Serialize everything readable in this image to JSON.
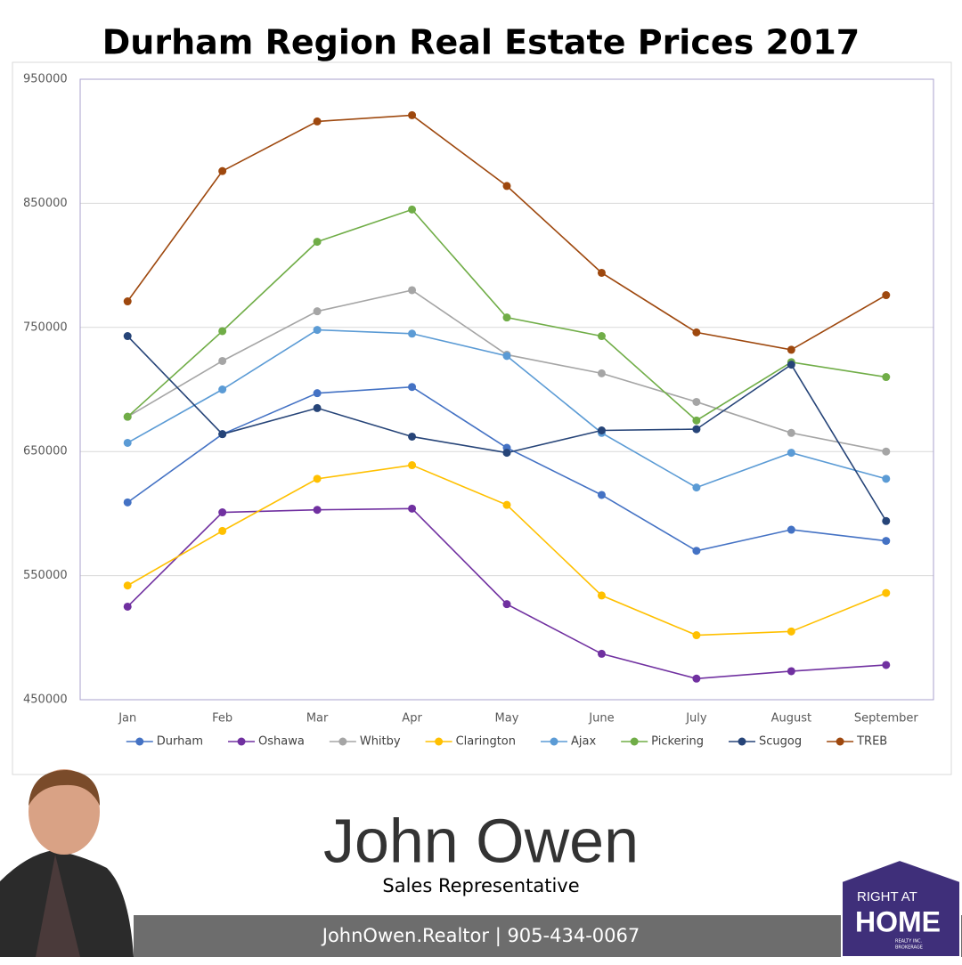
{
  "chart_data": {
    "type": "line",
    "title": "Durham Region Real Estate Prices 2017",
    "categories": [
      "Jan",
      "Feb",
      "Mar",
      "Apr",
      "May",
      "June",
      "July",
      "August",
      "September"
    ],
    "ylim": [
      450000,
      950000
    ],
    "yticks": [
      450000,
      550000,
      650000,
      750000,
      850000,
      950000
    ],
    "grid": true,
    "series": [
      {
        "name": "Durham",
        "color": "#4472c4",
        "values": [
          609000,
          664000,
          697000,
          702000,
          653000,
          615000,
          570000,
          587000,
          578000
        ]
      },
      {
        "name": "Oshawa",
        "color": "#7030a0",
        "values": [
          525000,
          601000,
          603000,
          604000,
          527000,
          487000,
          467000,
          473000,
          478000
        ]
      },
      {
        "name": "Whitby",
        "color": "#a5a5a5",
        "values": [
          678000,
          723000,
          763000,
          780000,
          728000,
          713000,
          690000,
          665000,
          650000
        ]
      },
      {
        "name": "Clarington",
        "color": "#ffc000",
        "values": [
          542000,
          586000,
          628000,
          639000,
          607000,
          534000,
          502000,
          505000,
          536000
        ]
      },
      {
        "name": "Ajax",
        "color": "#5b9bd5",
        "values": [
          657000,
          700000,
          748000,
          745000,
          727000,
          665000,
          621000,
          649000,
          628000
        ]
      },
      {
        "name": "Pickering",
        "color": "#70ad47",
        "values": [
          678000,
          747000,
          819000,
          845000,
          758000,
          743000,
          675000,
          722000,
          710000
        ]
      },
      {
        "name": "Scugog",
        "color": "#264478",
        "values": [
          743000,
          664000,
          685000,
          662000,
          649000,
          667000,
          668000,
          720000,
          594000
        ]
      },
      {
        "name": "TREB",
        "color": "#9e480e",
        "values": [
          771000,
          876000,
          916000,
          921000,
          864000,
          794000,
          746000,
          732000,
          776000
        ]
      }
    ]
  },
  "agent": {
    "name": "John Owen",
    "role": "Sales Representative",
    "contact": "JohnOwen.Realtor | 905-434-0067"
  },
  "logo": {
    "line1": "RIGHT AT",
    "line2": "HOME",
    "line3": "REALTY INC.",
    "line4": "BROKERAGE"
  }
}
